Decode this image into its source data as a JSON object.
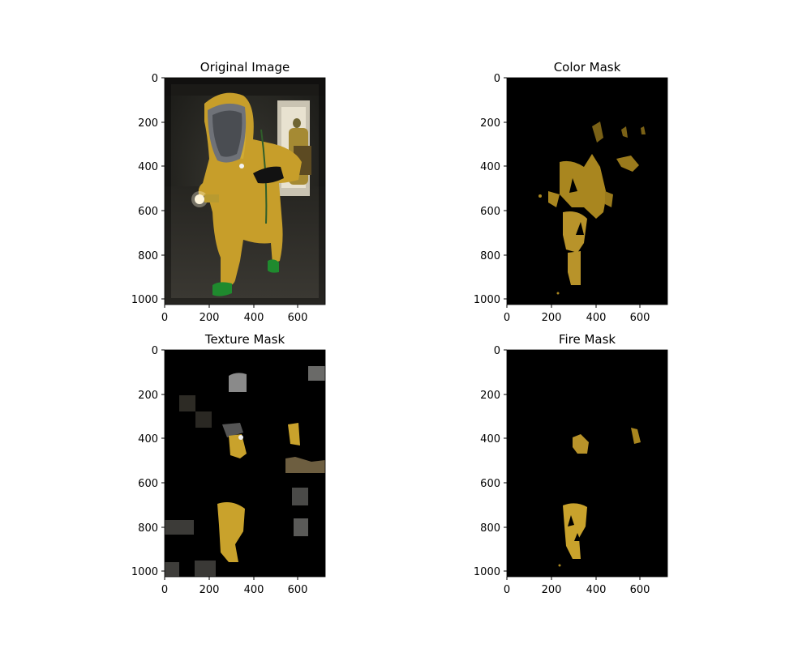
{
  "figure": {
    "background": "#ffffff",
    "suit_color": "#d4a72a",
    "mask_background": "#000000"
  },
  "chart_data": [
    {
      "type": "image",
      "title": "Original Image",
      "xticks": [
        0,
        200,
        400,
        600
      ],
      "yticks": [
        0,
        200,
        400,
        600,
        800,
        1000
      ],
      "xlim": [
        0,
        730
      ],
      "ylim": [
        1025,
        0
      ],
      "content": "photo of person in yellow hazmat suit with flashlight in dark room"
    },
    {
      "type": "image",
      "title": "Color Mask",
      "xticks": [
        0,
        200,
        400,
        600
      ],
      "yticks": [
        0,
        200,
        400,
        600,
        800,
        1000
      ],
      "xlim": [
        0,
        730
      ],
      "ylim": [
        1025,
        0
      ],
      "content": "yellow pixels of suit on black background"
    },
    {
      "type": "image",
      "title": "Texture Mask",
      "xticks": [
        0,
        200,
        400,
        600
      ],
      "yticks": [
        0,
        200,
        400,
        600,
        800,
        1000
      ],
      "xlim": [
        0,
        730
      ],
      "ylim": [
        1025,
        0
      ],
      "content": "scattered blocky patches on black background"
    },
    {
      "type": "image",
      "title": "Fire Mask",
      "xticks": [
        0,
        200,
        400,
        600
      ],
      "yticks": [
        0,
        200,
        400,
        600,
        800,
        1000
      ],
      "xlim": [
        0,
        730
      ],
      "ylim": [
        1025,
        0
      ],
      "content": "small yellow regions of suit leg and glove on black background"
    }
  ]
}
